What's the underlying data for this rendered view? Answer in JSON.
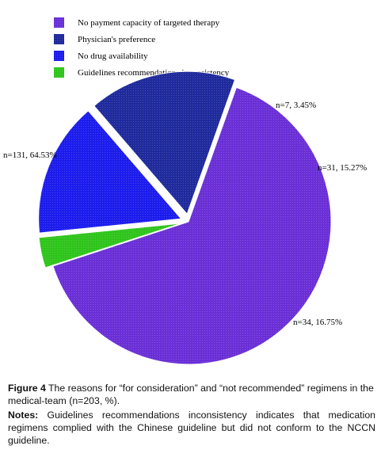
{
  "chart_data": {
    "type": "pie",
    "title": "",
    "series": [
      {
        "name": "No payment capacity of targeted therapy",
        "n": 131,
        "percent": 64.53,
        "label": "n=131, 64.53%",
        "color": "#6a2fd6"
      },
      {
        "name": "Guidelines recommendations inconsistency",
        "n": 7,
        "percent": 3.45,
        "label": "n=7, 3.45%",
        "color": "#2fc41c"
      },
      {
        "name": "No drug availability",
        "n": 31,
        "percent": 15.27,
        "label": "n=31, 15.27%",
        "color": "#1c1cec"
      },
      {
        "name": "Physician's preference",
        "n": 34,
        "percent": 16.75,
        "label": "n=34, 16.75%",
        "color": "#1f2a9c"
      }
    ],
    "legend": {
      "placement": "top-left",
      "order": [
        "No payment capacity of targeted therapy",
        "Physician's preference",
        "No drug availability",
        "Guidelines recommendations inconsistency"
      ]
    }
  },
  "caption": {
    "figure_label": "Figure 4",
    "figure_text": " The reasons for “for consideration” and “not recommended” regimens in the medical-team (n=203, %).",
    "notes_label": "Notes:",
    "notes_text": " Guidelines recommendations inconsistency indicates that medication regimens complied with the Chinese guideline but did not conform to the NCCN guideline."
  }
}
